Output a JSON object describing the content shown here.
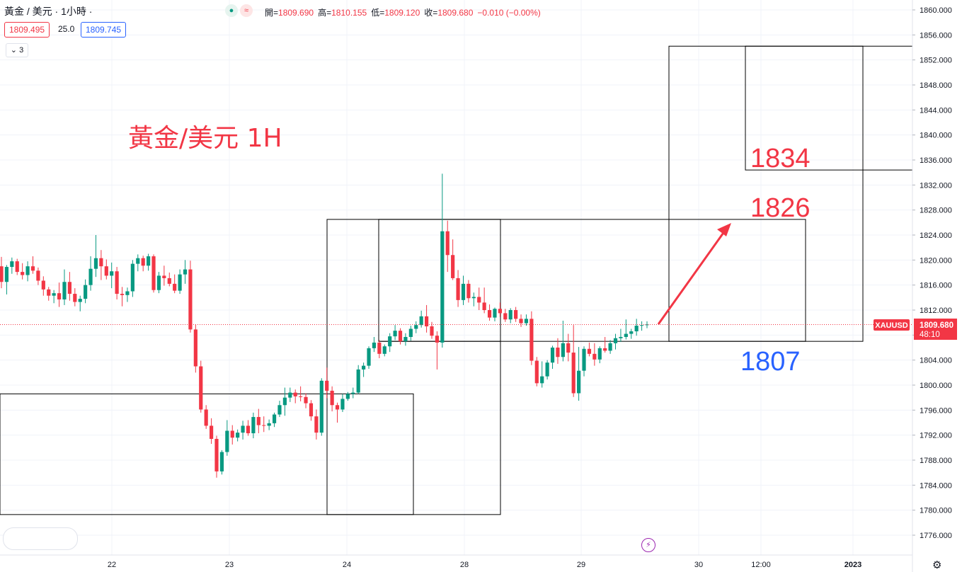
{
  "header": {
    "symbol_title": "黃金 / 美元 · 1小時 ·",
    "ohlc": [
      {
        "label": "開",
        "value": "1809.690"
      },
      {
        "label": "高",
        "value": "1810.155"
      },
      {
        "label": "低",
        "value": "1809.120"
      },
      {
        "label": "收",
        "value": "1809.680"
      }
    ],
    "change": "−0.010 (−0.00%)",
    "status_icons": [
      "market-open-dot-icon",
      "approximate-data-icon"
    ],
    "status_glyphs": [
      "●",
      "≈"
    ]
  },
  "trade": {
    "sell_price": "1809.495",
    "spread": "25.0",
    "buy_price": "1809.745"
  },
  "indicators": {
    "count_label": "3"
  },
  "colors": {
    "up": "#089981",
    "down": "#f23645",
    "annotation_red": "#f23645",
    "annotation_blue": "#2962ff",
    "grid": "#f0f3fa"
  },
  "chart_data": {
    "type": "candlestick",
    "title": "黃金/美元 1H",
    "ylim": [
      1774,
      1860
    ],
    "y_ticks": [
      "1860.000",
      "1856.000",
      "1852.000",
      "1848.000",
      "1844.000",
      "1840.000",
      "1836.000",
      "1832.000",
      "1828.000",
      "1824.000",
      "1820.000",
      "1816.000",
      "1812.000",
      "1808.000",
      "1804.000",
      "1800.000",
      "1796.000",
      "1792.000",
      "1788.000",
      "1784.000",
      "1780.000",
      "1776.000"
    ],
    "x_labels": [
      "22",
      "23",
      "24",
      "28",
      "29",
      "30",
      "12:00",
      "2023"
    ],
    "current_price": {
      "symbol": "XAUUSD",
      "value": "1809.680",
      "countdown": "48:10",
      "price": 1809.68
    },
    "annotations": {
      "title": "黃金/美元 1H",
      "targets": [
        "1834",
        "1826"
      ],
      "support": "1807"
    },
    "zones": [
      {
        "from_label": "",
        "to_label": "",
        "y_top": 1798.6,
        "y_bottom": 1779.3
      },
      {
        "from_label": "",
        "to_label": "",
        "y_top": 1826.5,
        "y_bottom": 1779.3
      },
      {
        "from_label": "",
        "to_label": "",
        "y_top": 1826.5,
        "y_bottom": 1807.0
      },
      {
        "from_label": "",
        "to_label": "",
        "y_top": 1826.5,
        "y_bottom": 1807.0
      },
      {
        "from_label": "",
        "to_label": "",
        "y_top": 1854.2,
        "y_bottom": 1807.0
      },
      {
        "from_label": "",
        "to_label": "",
        "y_top": 1854.2,
        "y_bottom": 1834.4
      }
    ],
    "candles": [
      [
        1819.0,
        1820.5,
        1815.5,
        1816.5
      ],
      [
        1816.5,
        1819.2,
        1814.5,
        1818.9
      ],
      [
        1818.9,
        1820.4,
        1817.8,
        1819.8
      ],
      [
        1819.8,
        1820.2,
        1817.6,
        1818.1
      ],
      [
        1818.1,
        1819.5,
        1816.9,
        1817.6
      ],
      [
        1817.6,
        1819.8,
        1816.6,
        1819.0
      ],
      [
        1819.0,
        1820.6,
        1817.8,
        1818.3
      ],
      [
        1818.3,
        1818.8,
        1816.0,
        1816.7
      ],
      [
        1816.7,
        1817.4,
        1814.3,
        1815.3
      ],
      [
        1815.3,
        1815.7,
        1813.5,
        1814.3
      ],
      [
        1814.3,
        1815.2,
        1813.1,
        1814.7
      ],
      [
        1814.7,
        1816.4,
        1812.5,
        1813.7
      ],
      [
        1813.7,
        1818.5,
        1812.8,
        1816.5
      ],
      [
        1816.5,
        1818.1,
        1813.5,
        1814.6
      ],
      [
        1814.6,
        1815.5,
        1812.6,
        1813.3
      ],
      [
        1813.3,
        1814.3,
        1811.8,
        1813.8
      ],
      [
        1813.8,
        1816.9,
        1813.1,
        1816.0
      ],
      [
        1816.0,
        1820.6,
        1815.1,
        1818.6
      ],
      [
        1818.6,
        1824.0,
        1817.3,
        1820.3
      ],
      [
        1820.3,
        1821.6,
        1816.8,
        1819.0
      ],
      [
        1819.0,
        1820.1,
        1816.9,
        1817.5
      ],
      [
        1817.5,
        1819.6,
        1815.5,
        1818.2
      ],
      [
        1818.2,
        1818.9,
        1813.7,
        1814.6
      ],
      [
        1814.6,
        1815.7,
        1812.6,
        1814.4
      ],
      [
        1814.4,
        1815.6,
        1813.3,
        1815.0
      ],
      [
        1815.0,
        1820.0,
        1814.1,
        1819.4
      ],
      [
        1819.4,
        1820.9,
        1818.2,
        1820.3
      ],
      [
        1820.3,
        1820.7,
        1818.2,
        1819.1
      ],
      [
        1819.1,
        1821.0,
        1818.3,
        1820.6
      ],
      [
        1820.6,
        1820.9,
        1814.8,
        1815.2
      ],
      [
        1815.2,
        1818.1,
        1814.7,
        1817.5
      ],
      [
        1817.5,
        1819.1,
        1815.9,
        1817.1
      ],
      [
        1817.1,
        1818.0,
        1815.8,
        1816.2
      ],
      [
        1816.2,
        1817.7,
        1814.7,
        1815.1
      ],
      [
        1815.1,
        1818.5,
        1814.6,
        1817.7
      ],
      [
        1817.7,
        1820.0,
        1816.2,
        1818.5
      ],
      [
        1818.5,
        1819.9,
        1808.4,
        1808.9
      ],
      [
        1808.9,
        1809.7,
        1802.0,
        1803.0
      ],
      [
        1803.0,
        1803.9,
        1795.6,
        1796.1
      ],
      [
        1796.1,
        1796.8,
        1793.0,
        1793.5
      ],
      [
        1793.5,
        1794.7,
        1790.6,
        1791.4
      ],
      [
        1791.4,
        1791.9,
        1785.2,
        1786.2
      ],
      [
        1786.2,
        1789.6,
        1785.7,
        1789.3
      ],
      [
        1789.3,
        1794.4,
        1788.7,
        1792.7
      ],
      [
        1792.7,
        1793.6,
        1790.5,
        1791.6
      ],
      [
        1791.6,
        1792.9,
        1791.0,
        1792.4
      ],
      [
        1792.4,
        1794.3,
        1791.3,
        1793.5
      ],
      [
        1793.5,
        1794.4,
        1791.9,
        1792.3
      ],
      [
        1792.3,
        1795.6,
        1791.5,
        1794.9
      ],
      [
        1794.9,
        1796.2,
        1792.3,
        1793.6
      ],
      [
        1793.6,
        1795.0,
        1792.5,
        1793.5
      ],
      [
        1793.5,
        1794.5,
        1792.8,
        1793.9
      ],
      [
        1793.9,
        1795.6,
        1793.3,
        1795.3
      ],
      [
        1795.3,
        1797.5,
        1794.9,
        1796.8
      ],
      [
        1796.8,
        1799.6,
        1795.1,
        1798.0
      ],
      [
        1798.0,
        1799.6,
        1797.3,
        1798.8
      ],
      [
        1798.8,
        1799.3,
        1797.1,
        1798.2
      ],
      [
        1798.2,
        1799.8,
        1797.4,
        1798.1
      ],
      [
        1798.1,
        1798.7,
        1796.3,
        1797.1
      ],
      [
        1797.1,
        1797.6,
        1794.3,
        1795.0
      ],
      [
        1795.0,
        1796.1,
        1791.3,
        1792.4
      ],
      [
        1792.4,
        1801.1,
        1791.9,
        1800.7
      ],
      [
        1800.7,
        1802.8,
        1797.9,
        1799.1
      ],
      [
        1799.1,
        1799.8,
        1795.8,
        1796.8
      ],
      [
        1796.8,
        1797.2,
        1794.0,
        1796.1
      ],
      [
        1796.1,
        1798.6,
        1795.7,
        1797.8
      ],
      [
        1797.8,
        1798.9,
        1797.5,
        1798.6
      ],
      [
        1798.6,
        1799.6,
        1797.9,
        1798.8
      ],
      [
        1798.8,
        1803.2,
        1798.6,
        1802.5
      ],
      [
        1802.5,
        1803.6,
        1801.3,
        1803.1
      ],
      [
        1803.1,
        1806.2,
        1802.6,
        1805.9
      ],
      [
        1805.9,
        1807.7,
        1805.3,
        1806.8
      ],
      [
        1806.8,
        1807.2,
        1804.3,
        1805.0
      ],
      [
        1805.0,
        1806.5,
        1804.6,
        1806.2
      ],
      [
        1806.2,
        1808.3,
        1805.3,
        1807.8
      ],
      [
        1807.8,
        1809.6,
        1807.2,
        1808.7
      ],
      [
        1808.7,
        1809.1,
        1806.5,
        1807.0
      ],
      [
        1807.0,
        1808.3,
        1806.3,
        1807.7
      ],
      [
        1807.7,
        1809.5,
        1807.1,
        1809.0
      ],
      [
        1809.0,
        1810.2,
        1808.3,
        1809.6
      ],
      [
        1809.6,
        1811.9,
        1809.2,
        1811.0
      ],
      [
        1811.0,
        1812.8,
        1808.4,
        1809.4
      ],
      [
        1809.4,
        1810.1,
        1807.4,
        1807.9
      ],
      [
        1807.9,
        1808.6,
        1802.5,
        1806.8
      ],
      [
        1806.8,
        1833.8,
        1806.0,
        1824.6
      ],
      [
        1824.6,
        1826.3,
        1818.1,
        1820.8
      ],
      [
        1820.8,
        1823.3,
        1816.8,
        1817.1
      ],
      [
        1817.1,
        1818.4,
        1812.5,
        1813.6
      ],
      [
        1813.6,
        1817.5,
        1812.8,
        1816.2
      ],
      [
        1816.2,
        1816.8,
        1813.2,
        1813.9
      ],
      [
        1813.9,
        1814.8,
        1812.6,
        1814.1
      ],
      [
        1814.1,
        1815.6,
        1812.0,
        1813.2
      ],
      [
        1813.2,
        1815.6,
        1811.5,
        1812.0
      ],
      [
        1812.0,
        1812.9,
        1810.3,
        1810.8
      ],
      [
        1810.8,
        1812.4,
        1810.2,
        1812.2
      ],
      [
        1812.2,
        1813.2,
        1810.9,
        1811.5
      ],
      [
        1811.5,
        1812.2,
        1810.1,
        1810.5
      ],
      [
        1810.5,
        1812.3,
        1809.9,
        1812.0
      ],
      [
        1812.0,
        1812.5,
        1810.1,
        1810.6
      ],
      [
        1810.6,
        1811.3,
        1809.3,
        1809.9
      ],
      [
        1809.9,
        1811.3,
        1809.5,
        1810.6
      ],
      [
        1810.6,
        1811.8,
        1803.2,
        1803.9
      ],
      [
        1803.9,
        1804.5,
        1799.8,
        1800.3
      ],
      [
        1800.3,
        1803.8,
        1799.6,
        1801.4
      ],
      [
        1801.4,
        1804.0,
        1800.9,
        1803.6
      ],
      [
        1803.6,
        1806.3,
        1802.6,
        1806.0
      ],
      [
        1806.0,
        1807.5,
        1803.4,
        1804.5
      ],
      [
        1804.5,
        1810.3,
        1803.8,
        1806.7
      ],
      [
        1806.7,
        1808.2,
        1803.8,
        1805.2
      ],
      [
        1805.2,
        1809.6,
        1798.1,
        1798.7
      ],
      [
        1798.7,
        1806.1,
        1797.5,
        1802.3
      ],
      [
        1802.3,
        1806.2,
        1801.4,
        1805.8
      ],
      [
        1805.8,
        1806.8,
        1804.6,
        1805.0
      ],
      [
        1805.0,
        1806.7,
        1803.1,
        1804.1
      ],
      [
        1804.1,
        1806.2,
        1803.5,
        1805.9
      ],
      [
        1805.9,
        1807.7,
        1805.2,
        1805.5
      ],
      [
        1805.5,
        1807.2,
        1805.0,
        1806.7
      ],
      [
        1806.7,
        1808.2,
        1805.7,
        1807.5
      ],
      [
        1807.5,
        1809.0,
        1806.9,
        1807.7
      ],
      [
        1807.7,
        1810.5,
        1807.3,
        1808.2
      ],
      [
        1808.2,
        1809.0,
        1807.4,
        1808.6
      ],
      [
        1808.6,
        1810.6,
        1807.9,
        1809.5
      ],
      [
        1809.5,
        1810.2,
        1808.7,
        1809.6
      ],
      [
        1809.6,
        1810.2,
        1809.1,
        1809.7
      ]
    ]
  }
}
